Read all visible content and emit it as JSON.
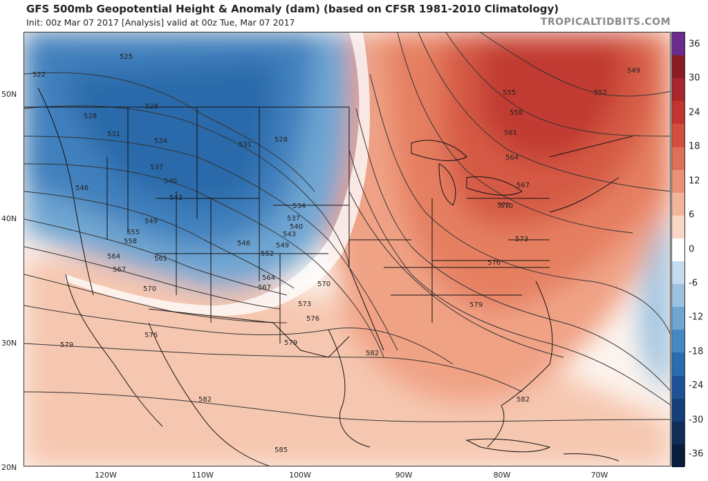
{
  "header": {
    "title": "GFS 500mb Geopotential Height & Anomaly (dam) (based on CFSR 1981-2010 Climatology)",
    "subtitle": "Init: 00z Mar 07 2017   [Analysis]   valid at 00z Tue, Mar 07 2017",
    "brand": "TROPICALTIDBITS.COM"
  },
  "axes": {
    "lat_labels": [
      "50N",
      "40N",
      "30N",
      "20N"
    ],
    "lon_labels": [
      "120W",
      "110W",
      "100W",
      "90W",
      "80W",
      "70W"
    ]
  },
  "colorbar": {
    "labels": [
      "36",
      "30",
      "24",
      "18",
      "12",
      "6",
      "0",
      "-6",
      "-12",
      "-18",
      "-24",
      "-30",
      "-36"
    ],
    "colors": [
      "#6b2b8e",
      "#8c1c24",
      "#a8262c",
      "#c2352f",
      "#d24f3e",
      "#de6f58",
      "#e99277",
      "#f2b59b",
      "#f9d7c6",
      "#ffffff",
      "#c6dbed",
      "#9cc2e0",
      "#6fa6d2",
      "#4688c3",
      "#2a6cb0",
      "#1d5396",
      "#163f78",
      "#102c58",
      "#0a1c3c"
    ]
  },
  "contours": {
    "labels": [
      "522",
      "525",
      "528",
      "528",
      "531",
      "531",
      "534",
      "528",
      "537",
      "540",
      "543",
      "546",
      "549",
      "534",
      "537",
      "540",
      "543",
      "546",
      "549",
      "552",
      "555",
      "558",
      "561",
      "564",
      "567",
      "570",
      "564",
      "567",
      "570",
      "573",
      "576",
      "579",
      "576",
      "579",
      "582",
      "582",
      "585",
      "549",
      "552",
      "555",
      "558",
      "561",
      "564",
      "567",
      "570",
      "573",
      "576",
      "579",
      "582",
      "570"
    ]
  },
  "legend_title": ""
}
